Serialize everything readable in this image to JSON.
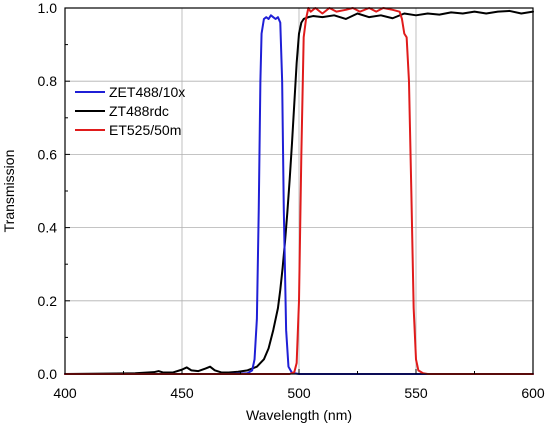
{
  "chart_data": {
    "type": "line",
    "xlabel": "Wavelength (nm)",
    "ylabel": "Transmission",
    "xlim": [
      400,
      600
    ],
    "ylim": [
      0,
      1.0
    ],
    "xticks": [
      400,
      450,
      500,
      550,
      600
    ],
    "yticks": [
      0.0,
      0.2,
      0.4,
      0.6,
      0.8,
      1.0
    ],
    "xtick_labels": [
      "400",
      "450",
      "500",
      "550",
      "600"
    ],
    "ytick_labels": [
      "0.0",
      "0.2",
      "0.4",
      "0.6",
      "0.8",
      "1.0"
    ],
    "grid": true,
    "legend_position": "top-left",
    "series": [
      {
        "name": "ZET488/10x",
        "color": "#1f1fd6",
        "x": [
          400,
          470,
          478,
          480,
          481,
          482,
          482.8,
          483.5,
          484,
          485,
          486,
          487,
          488,
          489,
          490,
          491,
          492,
          492.8,
          493.5,
          494.5,
          495.5,
          497,
          500,
          600
        ],
        "y": [
          0.0,
          0.0,
          0.002,
          0.01,
          0.04,
          0.15,
          0.45,
          0.8,
          0.93,
          0.97,
          0.975,
          0.97,
          0.98,
          0.975,
          0.97,
          0.975,
          0.96,
          0.8,
          0.45,
          0.12,
          0.02,
          0.003,
          0.0,
          0.0
        ]
      },
      {
        "name": "ZT488rdc",
        "color": "#000000",
        "x": [
          400,
          430,
          438,
          440,
          442,
          446,
          450,
          452,
          454,
          457,
          460,
          462,
          464,
          467,
          470,
          474,
          478,
          482,
          485,
          487,
          489,
          491,
          492,
          493,
          494,
          495,
          496,
          497,
          498,
          499,
          500,
          501,
          502,
          504,
          506,
          510,
          515,
          520,
          525,
          530,
          535,
          540,
          545,
          550,
          555,
          560,
          565,
          570,
          575,
          580,
          585,
          590,
          595,
          600
        ],
        "y": [
          0.0,
          0.002,
          0.005,
          0.008,
          0.004,
          0.004,
          0.012,
          0.018,
          0.01,
          0.008,
          0.015,
          0.02,
          0.01,
          0.004,
          0.004,
          0.006,
          0.01,
          0.02,
          0.04,
          0.07,
          0.12,
          0.18,
          0.23,
          0.29,
          0.36,
          0.44,
          0.53,
          0.63,
          0.74,
          0.85,
          0.93,
          0.96,
          0.97,
          0.975,
          0.978,
          0.975,
          0.98,
          0.97,
          0.985,
          0.975,
          0.98,
          0.972,
          0.985,
          0.98,
          0.985,
          0.982,
          0.988,
          0.985,
          0.99,
          0.985,
          0.99,
          0.992,
          0.985,
          0.99
        ]
      },
      {
        "name": "ET525/50m",
        "color": "#e01b1b",
        "x": [
          400,
          496,
          498,
          499,
          500,
          501,
          502,
          503,
          504,
          505,
          507,
          510,
          513,
          516,
          520,
          523,
          526,
          530,
          533,
          536,
          540,
          543,
          544,
          545,
          546,
          547,
          548,
          549,
          550,
          551,
          553,
          555,
          600
        ],
        "y": [
          0.0,
          0.0,
          0.005,
          0.03,
          0.2,
          0.6,
          0.92,
          0.97,
          1.0,
          0.99,
          1.0,
          0.985,
          1.0,
          0.99,
          0.995,
          1.0,
          0.99,
          1.0,
          0.99,
          1.0,
          0.995,
          0.99,
          0.97,
          0.93,
          0.92,
          0.8,
          0.5,
          0.18,
          0.04,
          0.01,
          0.002,
          0.0,
          0.0
        ]
      }
    ]
  }
}
